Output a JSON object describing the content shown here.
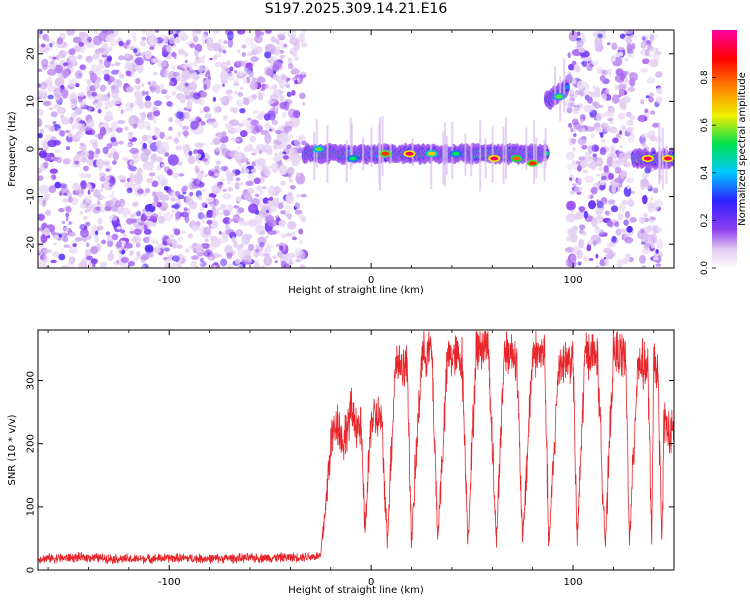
{
  "title": "S197.2025.309.14.21.E16",
  "chart_data": [
    {
      "type": "heatmap",
      "title": "S197.2025.309.14.21.E16",
      "xlabel": "Height of straight line (km)",
      "ylabel": "Frequency (Hz)",
      "xlim": [
        -165,
        150
      ],
      "ylim": [
        -25,
        25
      ],
      "xticks": [
        -100,
        0,
        100
      ],
      "yticks": [
        -20,
        -10,
        0,
        10,
        20
      ],
      "colorbar": {
        "label": "Normalized spectral amplitude",
        "range": [
          0.0,
          1.0
        ],
        "ticks": [
          0.0,
          0.2,
          0.4,
          0.6,
          0.8
        ],
        "tick_labels": [
          "0.0",
          "0.2",
          "0.4",
          "0.6",
          "0.8"
        ],
        "colormap": "rainbow",
        "colors": [
          "#ffffff",
          "#e0c8f0",
          "#9040f0",
          "#3020ff",
          "#00c8ff",
          "#00e050",
          "#f0f000",
          "#ff8000",
          "#ff0000",
          "#ff00a0"
        ]
      },
      "noise_regions_km": [
        [
          -165,
          -33
        ],
        [
          98,
          130
        ],
        [
          134,
          143
        ]
      ],
      "noise_level": 0.25,
      "signal_segments": [
        {
          "x_start": -33,
          "x_end": 87,
          "freq_hz": -1,
          "level": 0.75
        },
        {
          "x_start": 87,
          "x_end": 97,
          "freq_start_hz": 10,
          "freq_end_hz": 13,
          "level": 0.55
        },
        {
          "x_start": 130,
          "x_end": 150,
          "freq_hz": -2,
          "level": 0.8
        }
      ],
      "strong_spots": [
        {
          "x_km": -26,
          "freq_hz": 0,
          "level": 0.6
        },
        {
          "x_km": -9,
          "freq_hz": -2,
          "level": 0.55
        },
        {
          "x_km": 7,
          "freq_hz": -1,
          "level": 0.85
        },
        {
          "x_km": 19,
          "freq_hz": -1,
          "level": 0.95
        },
        {
          "x_km": 30,
          "freq_hz": -1,
          "level": 0.7
        },
        {
          "x_km": 42,
          "freq_hz": -1,
          "level": 0.55
        },
        {
          "x_km": 61,
          "freq_hz": -2,
          "level": 0.95
        },
        {
          "x_km": 72,
          "freq_hz": -2,
          "level": 0.8
        },
        {
          "x_km": 80,
          "freq_hz": -3,
          "level": 0.85
        },
        {
          "x_km": 93,
          "freq_hz": 11,
          "level": 0.6
        },
        {
          "x_km": 137,
          "freq_hz": -2,
          "level": 0.95
        },
        {
          "x_km": 147,
          "freq_hz": -2,
          "level": 0.95
        }
      ]
    },
    {
      "type": "line",
      "xlabel": "Height of straight line (km)",
      "ylabel": "SNR (10 * v/v)",
      "xlim": [
        -165,
        150
      ],
      "ylim": [
        0,
        380
      ],
      "xticks": [
        -100,
        0,
        100
      ],
      "yticks": [
        0,
        100,
        200,
        300
      ],
      "series": [
        {
          "name": "SNR",
          "color": "#e8252a",
          "segments": [
            {
              "x_start": -165,
              "x_end": -22,
              "baseline": 18,
              "noise": 10
            },
            {
              "x_start": -22,
              "x_end": 148,
              "baseline": 300,
              "noise": 40,
              "dropout_value": 40
            }
          ],
          "points": [
            [
              -165,
              18
            ],
            [
              -140,
              20
            ],
            [
              -120,
              17
            ],
            [
              -100,
              19
            ],
            [
              -80,
              18
            ],
            [
              -60,
              19
            ],
            [
              -40,
              20
            ],
            [
              -25,
              22
            ],
            [
              -22,
              120
            ],
            [
              -20,
              200
            ],
            [
              -17,
              240
            ],
            [
              -14,
              200
            ],
            [
              -10,
              250
            ],
            [
              -5,
              220
            ],
            [
              -3,
              60
            ],
            [
              0,
              240
            ],
            [
              5,
              240
            ],
            [
              8,
              45
            ],
            [
              12,
              330
            ],
            [
              18,
              320
            ],
            [
              20,
              40
            ],
            [
              25,
              340
            ],
            [
              30,
              350
            ],
            [
              33,
              50
            ],
            [
              38,
              340
            ],
            [
              45,
              335
            ],
            [
              48,
              45
            ],
            [
              52,
              350
            ],
            [
              58,
              360
            ],
            [
              62,
              45
            ],
            [
              66,
              350
            ],
            [
              72,
              340
            ],
            [
              75,
              40
            ],
            [
              80,
              345
            ],
            [
              86,
              340
            ],
            [
              88,
              35
            ],
            [
              93,
              330
            ],
            [
              100,
              335
            ],
            [
              102,
              40
            ],
            [
              106,
              345
            ],
            [
              112,
              340
            ],
            [
              116,
              40
            ],
            [
              120,
              345
            ],
            [
              126,
              340
            ],
            [
              128,
              40
            ],
            [
              132,
              330
            ],
            [
              137,
              320
            ],
            [
              139,
              50
            ],
            [
              140,
              330
            ],
            [
              142,
              310
            ],
            [
              144,
              40
            ],
            [
              145,
              240
            ],
            [
              148,
              210
            ],
            [
              150,
              220
            ]
          ]
        }
      ]
    }
  ]
}
